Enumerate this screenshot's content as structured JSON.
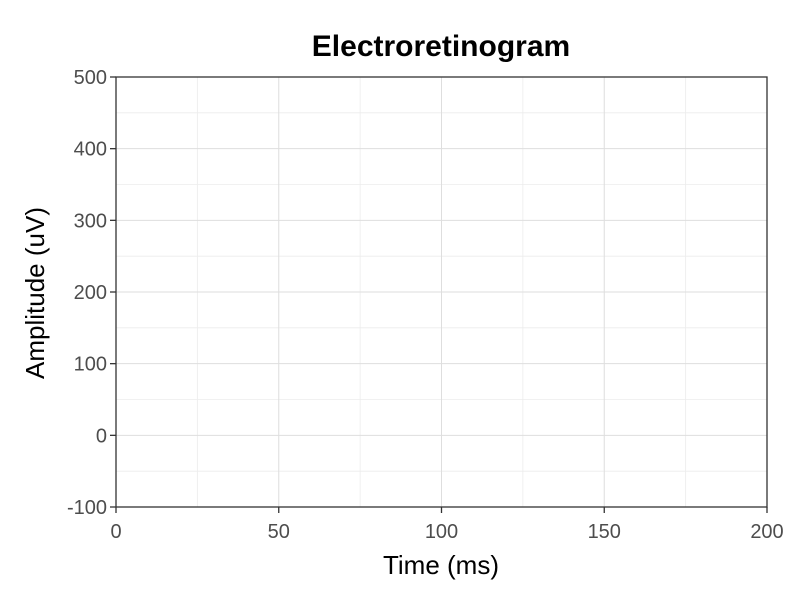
{
  "chart_data": {
    "type": "line",
    "title": "Electroretinogram",
    "xlabel": "Time (ms)",
    "ylabel": "Amplitude (uV)",
    "xlim": [
      0,
      200
    ],
    "ylim": [
      -100,
      500
    ],
    "x_ticks": [
      0,
      50,
      100,
      150,
      200
    ],
    "y_ticks": [
      -100,
      0,
      100,
      200,
      300,
      400,
      500
    ],
    "grid": true,
    "series": []
  }
}
